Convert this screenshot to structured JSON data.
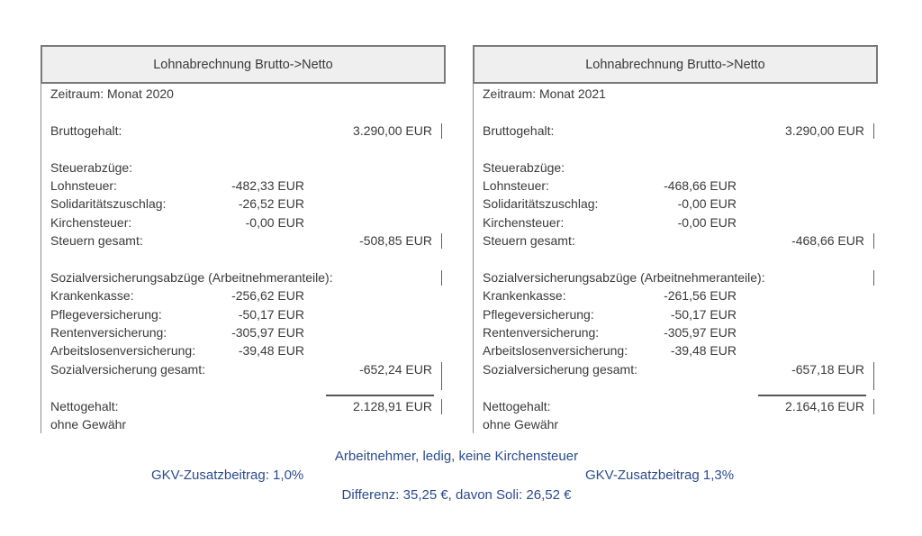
{
  "colors": {
    "accent_blue": "#2b4c8c",
    "header_bg": "#efefef",
    "border_gray": "#7a7a7a",
    "text": "#3a3a3a"
  },
  "panels": [
    {
      "header": "Lohnabrechnung Brutto->Netto",
      "zeitraum": "Zeitraum: Monat 2020",
      "brutto_label": "Bruttogehalt:",
      "brutto_value": "3.290,00 EUR",
      "steuer_section": "Steuerabzüge:",
      "lohnsteuer_label": "Lohnsteuer:",
      "lohnsteuer_value": "-482,33 EUR",
      "soli_label": "Solidaritätszuschlag:",
      "soli_value": "-26,52 EUR",
      "kirche_label": "Kirchensteuer:",
      "kirche_value": "-0,00 EUR",
      "steuern_gesamt_label": "Steuern gesamt:",
      "steuern_gesamt_value": "-508,85 EUR",
      "sozial_section": "Sozialversicherungsabzüge (Arbeitnehmeranteile):",
      "kranken_label": "Krankenkasse:",
      "kranken_value": "-256,62 EUR",
      "pflege_label": "Pflegeversicherung:",
      "pflege_value": "-50,17 EUR",
      "renten_label": "Rentenversicherung:",
      "renten_value": "-305,97 EUR",
      "arbeitslosen_label": "Arbeitslosenversicherung:",
      "arbeitslosen_value": "-39,48 EUR",
      "sozial_gesamt_label": "Sozialversicherung gesamt:",
      "sozial_gesamt_value": "-652,24 EUR",
      "netto_label": "Nettogehalt:",
      "netto_value": "2.128,91 EUR",
      "disclaimer": "ohne Gewähr"
    },
    {
      "header": "Lohnabrechnung Brutto->Netto",
      "zeitraum": "Zeitraum: Monat 2021",
      "brutto_label": "Bruttogehalt:",
      "brutto_value": "3.290,00 EUR",
      "steuer_section": "Steuerabzüge:",
      "lohnsteuer_label": "Lohnsteuer:",
      "lohnsteuer_value": "-468,66 EUR",
      "soli_label": "Solidaritätszuschlag:",
      "soli_value": "-0,00 EUR",
      "kirche_label": "Kirchensteuer:",
      "kirche_value": "-0,00 EUR",
      "steuern_gesamt_label": "Steuern gesamt:",
      "steuern_gesamt_value": "-468,66 EUR",
      "sozial_section": "Sozialversicherungsabzüge (Arbeitnehmeranteile):",
      "kranken_label": "Krankenkasse:",
      "kranken_value": "-261,56 EUR",
      "pflege_label": "Pflegeversicherung:",
      "pflege_value": "-50,17 EUR",
      "renten_label": "Rentenversicherung:",
      "renten_value": "-305,97 EUR",
      "arbeitslosen_label": "Arbeitslosenversicherung:",
      "arbeitslosen_value": "-39,48 EUR",
      "sozial_gesamt_label": "Sozialversicherung gesamt:",
      "sozial_gesamt_value": "-657,18 EUR",
      "netto_label": "Nettogehalt:",
      "netto_value": "2.164,16 EUR",
      "disclaimer": "ohne Gewähr"
    }
  ],
  "footer": {
    "line1": "Arbeitnehmer, ledig, keine Kirchensteuer",
    "line2_left": "GKV-Zusatzbeitrag: 1,0%",
    "line2_right": "GKV-Zusatzbeitrag 1,3%",
    "line3": "Differenz: 35,25 €, davon Soli: 26,52 €"
  }
}
